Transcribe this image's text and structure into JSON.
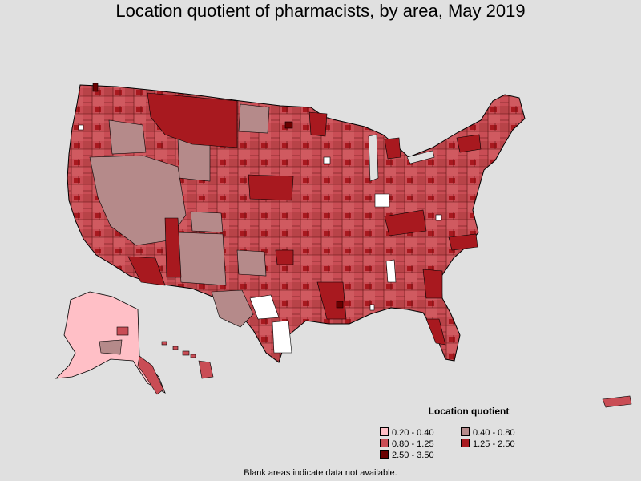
{
  "title": "Location quotient of pharmacists, by area, May 2019",
  "legend": {
    "title": "Location quotient",
    "items": [
      {
        "label": "0.20 - 0.40",
        "color": "#ffbfc6"
      },
      {
        "label": "0.40 - 0.80",
        "color": "#b58a8a"
      },
      {
        "label": "0.80 - 1.25",
        "color": "#c94d55"
      },
      {
        "label": "1.25 - 2.50",
        "color": "#a8191f"
      },
      {
        "label": "2.50 - 3.50",
        "color": "#6a0000"
      }
    ]
  },
  "footnote": "Blank areas indicate data not available.",
  "colors": {
    "background": "#e0e0e0",
    "no_data": "#ffffff",
    "border": "#000000"
  }
}
